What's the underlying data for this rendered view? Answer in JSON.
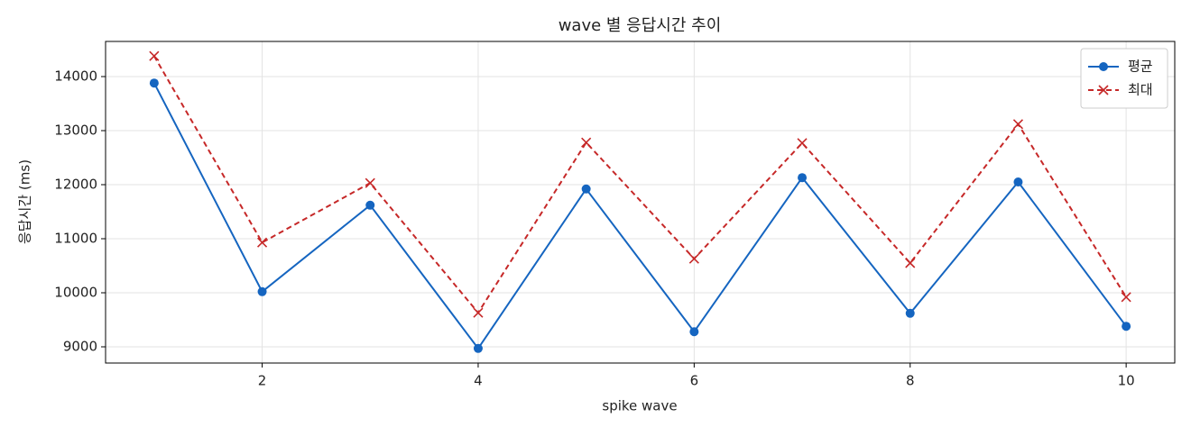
{
  "chart_data": {
    "type": "line",
    "title": "wave 별 응답시간 추이",
    "x_label": "spike wave",
    "y_label": "응답시간 (ms)",
    "x": [
      1,
      2,
      3,
      4,
      5,
      6,
      7,
      8,
      9,
      10
    ],
    "series": [
      {
        "name": "평균",
        "color": "#1565c0",
        "marker": "circle",
        "dash": "solid",
        "values": [
          13880,
          10020,
          11620,
          8970,
          11920,
          9280,
          12130,
          9620,
          12050,
          9380
        ]
      },
      {
        "name": "최대",
        "color": "#c62828",
        "marker": "x",
        "dash": "dashed",
        "values": [
          14380,
          10930,
          12030,
          9630,
          12780,
          10630,
          12770,
          10550,
          13120,
          9920
        ]
      }
    ],
    "xlim": [
      0.55,
      10.45
    ],
    "xticks": [
      2,
      4,
      6,
      8,
      10
    ],
    "ylim": [
      8700,
      14650
    ],
    "yticks": [
      9000,
      10000,
      11000,
      12000,
      13000,
      14000
    ],
    "grid": true,
    "legend": "upper right"
  }
}
